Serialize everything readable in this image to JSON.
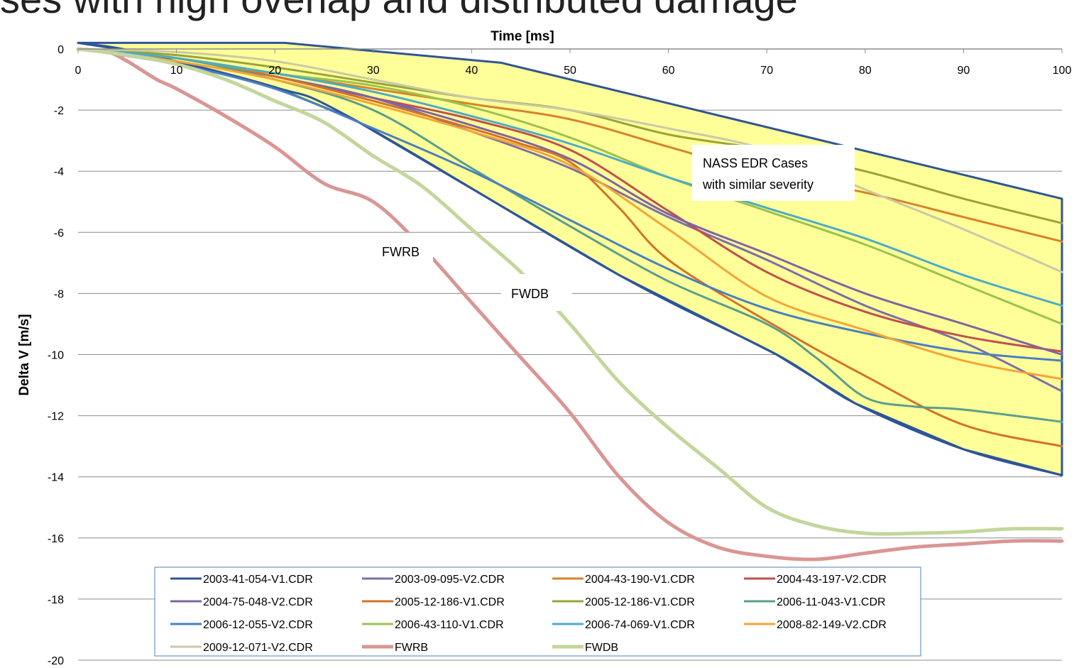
{
  "slide": {
    "title": "ses with high overlap and distributed damage"
  },
  "chart_data": {
    "type": "line",
    "title": "",
    "xlabel": "Time [ms]",
    "ylabel": "Delta V [m/s]",
    "xlim": [
      0,
      100
    ],
    "ylim": [
      -20,
      0
    ],
    "xticks": [
      0,
      10,
      20,
      30,
      40,
      50,
      60,
      70,
      80,
      90,
      100
    ],
    "yticks": [
      0,
      -2,
      -4,
      -6,
      -8,
      -10,
      -12,
      -14,
      -16,
      -18,
      -20
    ],
    "grid": "horizontal",
    "legend_position": "bottom",
    "envelope": {
      "fill": "#ffff99",
      "stroke": "#2e5597",
      "upper": [
        [
          0,
          0.2
        ],
        [
          21,
          0.2
        ],
        [
          43,
          -0.45
        ],
        [
          100,
          -4.9
        ]
      ],
      "lower": [
        [
          0,
          0.2
        ],
        [
          6,
          -0.1
        ],
        [
          20,
          -1.25
        ],
        [
          28,
          -2.3
        ],
        [
          55,
          -7.4
        ],
        [
          71,
          -10
        ],
        [
          79,
          -11.6
        ],
        [
          90,
          -13.1
        ],
        [
          100,
          -13.95
        ]
      ]
    },
    "series": [
      {
        "name": "2003-41-054-V1.CDR",
        "color": "#2e5597",
        "width": 3,
        "x": [
          0,
          6,
          20,
          28,
          55,
          71,
          79,
          90,
          100
        ],
        "y": [
          0.2,
          -0.1,
          -1.25,
          -2.3,
          -7.4,
          -10,
          -11.6,
          -13.1,
          -13.95
        ]
      },
      {
        "name": "2003-09-095-V2.CDR",
        "color": "#7b6fa8",
        "width": 3,
        "x": [
          0,
          10,
          20,
          30,
          40,
          50,
          60,
          70,
          80,
          90,
          100
        ],
        "y": [
          0,
          -0.3,
          -0.9,
          -1.6,
          -2.7,
          -3.9,
          -5.5,
          -6.9,
          -8.4,
          -9.6,
          -11.2
        ]
      },
      {
        "name": "2004-43-190-V1.CDR",
        "color": "#d9822b",
        "width": 3,
        "x": [
          0,
          10,
          20,
          30,
          40,
          50,
          60,
          70,
          80,
          90,
          100
        ],
        "y": [
          0,
          -0.3,
          -0.8,
          -1.3,
          -1.8,
          -2.3,
          -3.2,
          -4.1,
          -4.7,
          -5.5,
          -6.3
        ]
      },
      {
        "name": "2004-43-197-V2.CDR",
        "color": "#c0504d",
        "width": 3,
        "x": [
          0,
          10,
          20,
          30,
          40,
          50,
          60,
          70,
          80,
          90,
          100
        ],
        "y": [
          0,
          -0.3,
          -0.9,
          -1.6,
          -2.3,
          -3.3,
          -5.3,
          -7.3,
          -8.6,
          -9.4,
          -9.9
        ]
      },
      {
        "name": "2004-75-048-V2.CDR",
        "color": "#8064a2",
        "width": 3,
        "x": [
          0,
          10,
          20,
          30,
          40,
          50,
          60,
          70,
          80,
          90,
          100
        ],
        "y": [
          0,
          -0.3,
          -0.9,
          -1.6,
          -2.5,
          -3.6,
          -5.4,
          -6.7,
          -8,
          -9,
          -10
        ]
      },
      {
        "name": "2005-12-186-V1.CDR",
        "color": "#d3722a",
        "width": 3,
        "x": [
          0,
          10,
          20,
          30,
          40,
          45,
          50,
          55,
          60,
          70,
          80,
          90,
          100
        ],
        "y": [
          0,
          -0.3,
          -0.9,
          -1.7,
          -2.6,
          -3.1,
          -3.7,
          -5.2,
          -6.9,
          -8.9,
          -10.7,
          -12.3,
          -13
        ]
      },
      {
        "name": "2005-12-186-V1.CDR",
        "color": "#9aa33a",
        "width": 3,
        "x": [
          0,
          10,
          20,
          30,
          40,
          50,
          60,
          70,
          80,
          90,
          100
        ],
        "y": [
          0,
          -0.2,
          -0.6,
          -1.1,
          -1.6,
          -2,
          -2.8,
          -3.3,
          -4,
          -4.9,
          -5.7
        ]
      },
      {
        "name": "2006-11-043-V1.CDR",
        "color": "#5a9e8c",
        "width": 3,
        "x": [
          0,
          10,
          20,
          30,
          40,
          50,
          60,
          70,
          75,
          80,
          85,
          90,
          100
        ],
        "y": [
          0,
          -0.3,
          -1,
          -2,
          -3.9,
          -5.8,
          -7.6,
          -9,
          -10.1,
          -11.4,
          -11.7,
          -11.8,
          -12.2
        ]
      },
      {
        "name": "2006-12-055-V2.CDR",
        "color": "#4a7fc1",
        "width": 3,
        "x": [
          0,
          10,
          20,
          30,
          40,
          50,
          60,
          70,
          80,
          90,
          100
        ],
        "y": [
          0,
          -0.5,
          -1.3,
          -2.6,
          -4,
          -5.6,
          -7.2,
          -8.5,
          -9.3,
          -9.9,
          -10.2
        ]
      },
      {
        "name": "2006-43-110-V1.CDR",
        "color": "#9bc24f",
        "width": 3,
        "x": [
          0,
          10,
          20,
          30,
          40,
          50,
          60,
          70,
          80,
          90,
          100
        ],
        "y": [
          0,
          -0.3,
          -0.8,
          -1.2,
          -1.9,
          -2.9,
          -4.2,
          -5.3,
          -6.4,
          -7.7,
          -9
        ]
      },
      {
        "name": "2006-74-069-V1.CDR",
        "color": "#4bacc6",
        "width": 3,
        "x": [
          0,
          10,
          20,
          30,
          40,
          50,
          60,
          70,
          80,
          90,
          100
        ],
        "y": [
          0,
          -0.3,
          -0.8,
          -1.4,
          -2.2,
          -3.1,
          -4.2,
          -5.2,
          -6.2,
          -7.4,
          -8.4
        ]
      },
      {
        "name": "2008-82-149-V2.CDR",
        "color": "#f4a536",
        "width": 3,
        "x": [
          0,
          10,
          20,
          30,
          40,
          50,
          60,
          70,
          80,
          90,
          100
        ],
        "y": [
          0,
          -0.4,
          -1,
          -1.8,
          -2.7,
          -3.8,
          -5.9,
          -8.1,
          -9.2,
          -10.2,
          -10.8
        ]
      },
      {
        "name": "2009-12-071-V2.CDR",
        "color": "#c9c9a8",
        "width": 3,
        "x": [
          0,
          10,
          20,
          30,
          40,
          50,
          60,
          70,
          80,
          90,
          100
        ],
        "y": [
          0,
          -0.1,
          -0.4,
          -1,
          -1.6,
          -2,
          -2.6,
          -3.3,
          -4.6,
          -5.9,
          -7.3
        ]
      },
      {
        "name": "FWRB",
        "color": "#d99694",
        "width": 5,
        "x": [
          0,
          3,
          5,
          8,
          10,
          15,
          20,
          25,
          30,
          35,
          40,
          45,
          50,
          55,
          60,
          65,
          70,
          75,
          80,
          85,
          90,
          95,
          100
        ],
        "y": [
          0,
          -0.1,
          -0.4,
          -1,
          -1.3,
          -2.2,
          -3.2,
          -4.4,
          -5,
          -6.5,
          -8.3,
          -10.1,
          -11.9,
          -14,
          -15.5,
          -16.3,
          -16.6,
          -16.7,
          -16.5,
          -16.3,
          -16.2,
          -16.1,
          -16.1
        ]
      },
      {
        "name": "FWDB",
        "color": "#c3d69b",
        "width": 5,
        "x": [
          0,
          5,
          10,
          15,
          20,
          25,
          30,
          35,
          40,
          45,
          50,
          55,
          60,
          65,
          70,
          75,
          80,
          85,
          90,
          95,
          100
        ],
        "y": [
          0,
          -0.2,
          -0.5,
          -1,
          -1.7,
          -2.4,
          -3.5,
          -4.5,
          -5.9,
          -7.3,
          -9,
          -10.9,
          -12.4,
          -13.7,
          -15,
          -15.6,
          -15.85,
          -15.85,
          -15.8,
          -15.7,
          -15.7
        ]
      }
    ],
    "annotations": [
      {
        "lines": [
          "NASS EDR Cases",
          "with similar severity"
        ]
      },
      {
        "lines": [
          "FWRB"
        ]
      },
      {
        "lines": [
          "FWDB"
        ]
      }
    ]
  }
}
